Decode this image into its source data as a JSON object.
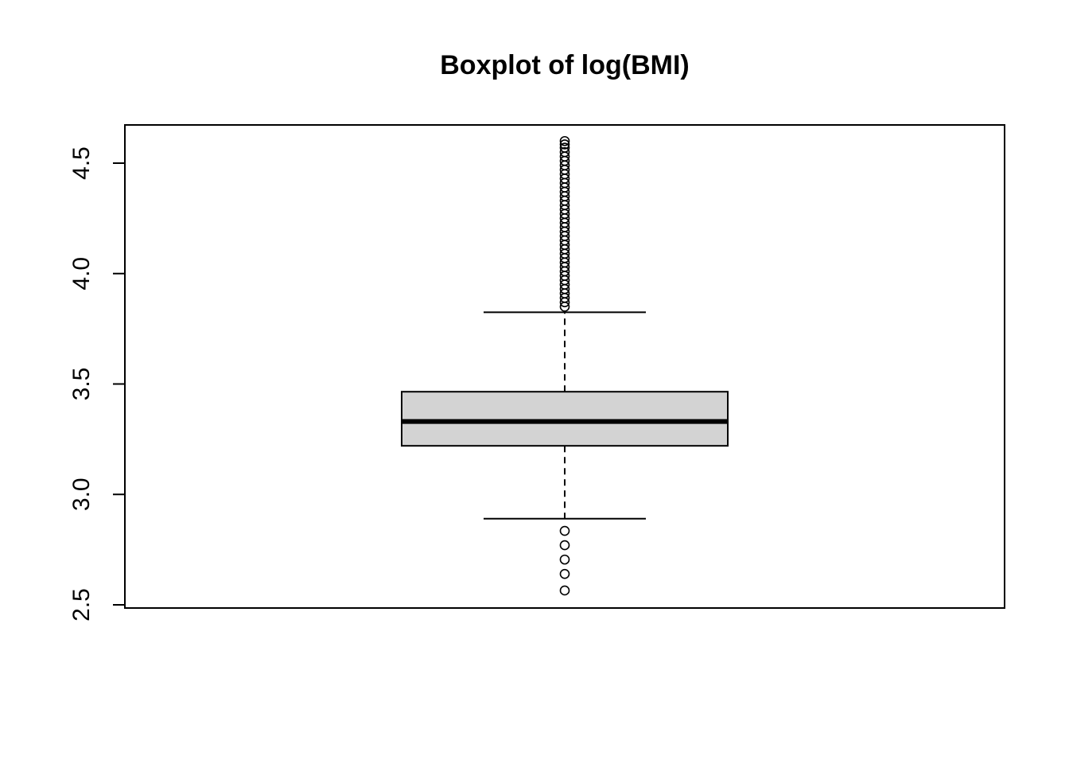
{
  "chart_data": {
    "type": "boxplot",
    "title": "Boxplot of log(BMI)",
    "xlabel": "",
    "ylabel": "",
    "ylim": [
      2.55,
      4.67
    ],
    "yticks": [
      2.5,
      3.0,
      3.5,
      4.0,
      4.5
    ],
    "ytick_labels": [
      "2.5",
      "3.0",
      "3.5",
      "4.0",
      "4.5"
    ],
    "grid": false,
    "box": {
      "whisker_low": 2.89,
      "q1": 3.22,
      "median": 3.33,
      "q3": 3.465,
      "whisker_high": 3.825
    },
    "outliers_low": [
      2.835,
      2.77,
      2.705,
      2.64,
      2.565
    ],
    "outliers_high": [
      3.85,
      3.87,
      3.89,
      3.91,
      3.93,
      3.95,
      3.97,
      3.99,
      4.01,
      4.03,
      4.05,
      4.07,
      4.09,
      4.11,
      4.13,
      4.15,
      4.17,
      4.19,
      4.21,
      4.23,
      4.25,
      4.27,
      4.29,
      4.31,
      4.33,
      4.35,
      4.37,
      4.39,
      4.41,
      4.43,
      4.45,
      4.47,
      4.49,
      4.51,
      4.53,
      4.55,
      4.57,
      4.585,
      4.6
    ],
    "colors": {
      "box_fill": "#d3d3d3",
      "line": "#000000",
      "background": "#ffffff"
    }
  }
}
